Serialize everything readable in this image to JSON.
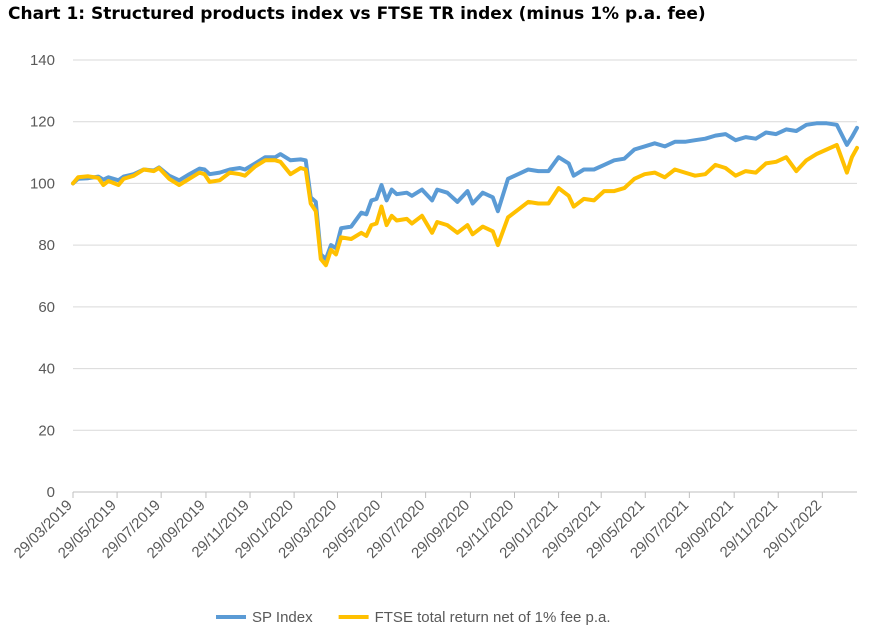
{
  "title": "Chart 1: Structured products index vs FTSE TR index (minus 1% p.a. fee)",
  "chart_data": {
    "type": "line",
    "title": "Chart 1: Structured products index vs FTSE TR index (minus 1% p.a. fee)",
    "xlabel": "",
    "ylabel": "",
    "ylim": [
      0,
      140
    ],
    "y_ticks": [
      0,
      20,
      40,
      60,
      80,
      100,
      120,
      140
    ],
    "x_range": [
      "2019-03-29",
      "2022-03-18"
    ],
    "x_ticks": [
      "29/03/2019",
      "29/05/2019",
      "29/07/2019",
      "29/09/2019",
      "29/11/2019",
      "29/01/2020",
      "29/03/2020",
      "29/05/2020",
      "29/07/2020",
      "29/09/2020",
      "29/11/2020",
      "29/01/2021",
      "29/03/2021",
      "29/05/2021",
      "29/07/2021",
      "29/09/2021",
      "29/11/2021",
      "29/01/2022"
    ],
    "grid": "horizontal",
    "legend_position": "bottom",
    "series": [
      {
        "name": "SP Index",
        "color": "#5B9BD5",
        "points": [
          [
            "2019-03-29",
            100
          ],
          [
            "2019-04-05",
            101.5
          ],
          [
            "2019-04-19",
            101.7
          ],
          [
            "2019-05-03",
            102.2
          ],
          [
            "2019-05-10",
            101.2
          ],
          [
            "2019-05-17",
            102.0
          ],
          [
            "2019-05-31",
            101.0
          ],
          [
            "2019-06-07",
            102.2
          ],
          [
            "2019-06-21",
            103.0
          ],
          [
            "2019-07-05",
            104.5
          ],
          [
            "2019-07-19",
            104.2
          ],
          [
            "2019-07-26",
            105.2
          ],
          [
            "2019-08-09",
            102.5
          ],
          [
            "2019-08-23",
            101.0
          ],
          [
            "2019-09-06",
            103.0
          ],
          [
            "2019-09-20",
            104.8
          ],
          [
            "2019-09-27",
            104.5
          ],
          [
            "2019-10-04",
            103.0
          ],
          [
            "2019-10-18",
            103.5
          ],
          [
            "2019-11-01",
            104.5
          ],
          [
            "2019-11-15",
            105.0
          ],
          [
            "2019-11-22",
            104.5
          ],
          [
            "2019-12-06",
            106.5
          ],
          [
            "2019-12-20",
            108.5
          ],
          [
            "2020-01-03",
            108.5
          ],
          [
            "2020-01-10",
            109.5
          ],
          [
            "2020-01-24",
            107.5
          ],
          [
            "2020-02-07",
            107.8
          ],
          [
            "2020-02-14",
            107.5
          ],
          [
            "2020-02-21",
            95.5
          ],
          [
            "2020-02-28",
            94.0
          ],
          [
            "2020-03-06",
            77.0
          ],
          [
            "2020-03-13",
            75.5
          ],
          [
            "2020-03-20",
            80.0
          ],
          [
            "2020-03-27",
            79.0
          ],
          [
            "2020-04-03",
            85.5
          ],
          [
            "2020-04-17",
            86.0
          ],
          [
            "2020-05-01",
            90.5
          ],
          [
            "2020-05-08",
            90.0
          ],
          [
            "2020-05-15",
            94.5
          ],
          [
            "2020-05-22",
            95.0
          ],
          [
            "2020-05-29",
            99.5
          ],
          [
            "2020-06-05",
            94.5
          ],
          [
            "2020-06-12",
            98.0
          ],
          [
            "2020-06-19",
            96.5
          ],
          [
            "2020-07-03",
            97.0
          ],
          [
            "2020-07-10",
            96.0
          ],
          [
            "2020-07-24",
            98.0
          ],
          [
            "2020-08-07",
            94.5
          ],
          [
            "2020-08-14",
            98.0
          ],
          [
            "2020-08-28",
            97.0
          ],
          [
            "2020-09-11",
            94.0
          ],
          [
            "2020-09-25",
            97.5
          ],
          [
            "2020-10-02",
            93.5
          ],
          [
            "2020-10-16",
            97.0
          ],
          [
            "2020-10-30",
            95.5
          ],
          [
            "2020-11-06",
            91.0
          ],
          [
            "2020-11-20",
            101.5
          ],
          [
            "2020-12-04",
            103.0
          ],
          [
            "2020-12-18",
            104.5
          ],
          [
            "2021-01-01",
            104.0
          ],
          [
            "2021-01-15",
            104.0
          ],
          [
            "2021-01-29",
            108.5
          ],
          [
            "2021-02-12",
            106.5
          ],
          [
            "2021-02-19",
            102.5
          ],
          [
            "2021-03-05",
            104.5
          ],
          [
            "2021-03-19",
            104.5
          ],
          [
            "2021-04-02",
            106.0
          ],
          [
            "2021-04-16",
            107.5
          ],
          [
            "2021-04-30",
            108.0
          ],
          [
            "2021-05-14",
            111.0
          ],
          [
            "2021-05-28",
            112.0
          ],
          [
            "2021-06-11",
            113.0
          ],
          [
            "2021-06-25",
            112.0
          ],
          [
            "2021-07-09",
            113.5
          ],
          [
            "2021-07-23",
            113.5
          ],
          [
            "2021-08-06",
            114.0
          ],
          [
            "2021-08-20",
            114.5
          ],
          [
            "2021-09-03",
            115.5
          ],
          [
            "2021-09-17",
            116.0
          ],
          [
            "2021-10-01",
            114.0
          ],
          [
            "2021-10-15",
            115.0
          ],
          [
            "2021-10-29",
            114.5
          ],
          [
            "2021-11-12",
            116.5
          ],
          [
            "2021-11-26",
            116.0
          ],
          [
            "2021-12-10",
            117.5
          ],
          [
            "2021-12-24",
            117.0
          ],
          [
            "2022-01-07",
            119.0
          ],
          [
            "2022-01-21",
            119.5
          ],
          [
            "2022-02-04",
            119.5
          ],
          [
            "2022-02-18",
            119.0
          ],
          [
            "2022-03-04",
            112.5
          ],
          [
            "2022-03-11",
            115.0
          ],
          [
            "2022-03-18",
            118.0
          ]
        ]
      },
      {
        "name": "FTSE total return net of 1% fee p.a.",
        "color": "#FFC000",
        "points": [
          [
            "2019-03-29",
            100
          ],
          [
            "2019-04-05",
            102.0
          ],
          [
            "2019-04-19",
            102.3
          ],
          [
            "2019-05-03",
            101.8
          ],
          [
            "2019-05-10",
            99.5
          ],
          [
            "2019-05-17",
            100.8
          ],
          [
            "2019-05-31",
            99.5
          ],
          [
            "2019-06-07",
            101.5
          ],
          [
            "2019-06-21",
            102.5
          ],
          [
            "2019-07-05",
            104.5
          ],
          [
            "2019-07-19",
            104.0
          ],
          [
            "2019-07-26",
            105.0
          ],
          [
            "2019-08-09",
            101.5
          ],
          [
            "2019-08-23",
            99.5
          ],
          [
            "2019-09-06",
            101.5
          ],
          [
            "2019-09-20",
            103.5
          ],
          [
            "2019-09-27",
            103.0
          ],
          [
            "2019-10-04",
            100.5
          ],
          [
            "2019-10-18",
            101.0
          ],
          [
            "2019-11-01",
            103.5
          ],
          [
            "2019-11-15",
            103.0
          ],
          [
            "2019-11-22",
            102.5
          ],
          [
            "2019-12-06",
            105.5
          ],
          [
            "2019-12-20",
            107.5
          ],
          [
            "2020-01-03",
            107.5
          ],
          [
            "2020-01-10",
            107.0
          ],
          [
            "2020-01-24",
            103.0
          ],
          [
            "2020-02-07",
            105.0
          ],
          [
            "2020-02-14",
            104.5
          ],
          [
            "2020-02-21",
            93.5
          ],
          [
            "2020-02-28",
            91.0
          ],
          [
            "2020-03-06",
            75.5
          ],
          [
            "2020-03-13",
            73.5
          ],
          [
            "2020-03-20",
            78.5
          ],
          [
            "2020-03-27",
            77.0
          ],
          [
            "2020-04-03",
            82.5
          ],
          [
            "2020-04-17",
            82.0
          ],
          [
            "2020-05-01",
            84.0
          ],
          [
            "2020-05-08",
            83.0
          ],
          [
            "2020-05-15",
            86.5
          ],
          [
            "2020-05-22",
            87.0
          ],
          [
            "2020-05-29",
            92.5
          ],
          [
            "2020-06-05",
            86.5
          ],
          [
            "2020-06-12",
            89.5
          ],
          [
            "2020-06-19",
            88.0
          ],
          [
            "2020-07-03",
            88.5
          ],
          [
            "2020-07-10",
            87.0
          ],
          [
            "2020-07-24",
            89.5
          ],
          [
            "2020-08-07",
            84.0
          ],
          [
            "2020-08-14",
            87.5
          ],
          [
            "2020-08-28",
            86.5
          ],
          [
            "2020-09-11",
            84.0
          ],
          [
            "2020-09-25",
            86.5
          ],
          [
            "2020-10-02",
            83.5
          ],
          [
            "2020-10-16",
            86.0
          ],
          [
            "2020-10-30",
            84.5
          ],
          [
            "2020-11-06",
            80.0
          ],
          [
            "2020-11-20",
            89.0
          ],
          [
            "2020-12-04",
            91.5
          ],
          [
            "2020-12-18",
            94.0
          ],
          [
            "2021-01-01",
            93.5
          ],
          [
            "2021-01-15",
            93.5
          ],
          [
            "2021-01-29",
            98.5
          ],
          [
            "2021-02-12",
            96.0
          ],
          [
            "2021-02-19",
            92.5
          ],
          [
            "2021-03-05",
            95.0
          ],
          [
            "2021-03-19",
            94.5
          ],
          [
            "2021-04-02",
            97.5
          ],
          [
            "2021-04-16",
            97.5
          ],
          [
            "2021-04-30",
            98.5
          ],
          [
            "2021-05-14",
            101.5
          ],
          [
            "2021-05-28",
            103.0
          ],
          [
            "2021-06-11",
            103.5
          ],
          [
            "2021-06-25",
            102.0
          ],
          [
            "2021-07-09",
            104.5
          ],
          [
            "2021-07-23",
            103.5
          ],
          [
            "2021-08-06",
            102.5
          ],
          [
            "2021-08-20",
            103.0
          ],
          [
            "2021-09-03",
            106.0
          ],
          [
            "2021-09-17",
            105.0
          ],
          [
            "2021-10-01",
            102.5
          ],
          [
            "2021-10-15",
            104.0
          ],
          [
            "2021-10-29",
            103.5
          ],
          [
            "2021-11-12",
            106.5
          ],
          [
            "2021-11-26",
            107.0
          ],
          [
            "2021-12-10",
            108.5
          ],
          [
            "2021-12-24",
            104.0
          ],
          [
            "2022-01-07",
            107.5
          ],
          [
            "2022-01-21",
            109.5
          ],
          [
            "2022-02-04",
            111.0
          ],
          [
            "2022-02-18",
            112.5
          ],
          [
            "2022-03-04",
            103.5
          ],
          [
            "2022-03-11",
            108.5
          ],
          [
            "2022-03-18",
            111.5
          ]
        ]
      }
    ]
  }
}
